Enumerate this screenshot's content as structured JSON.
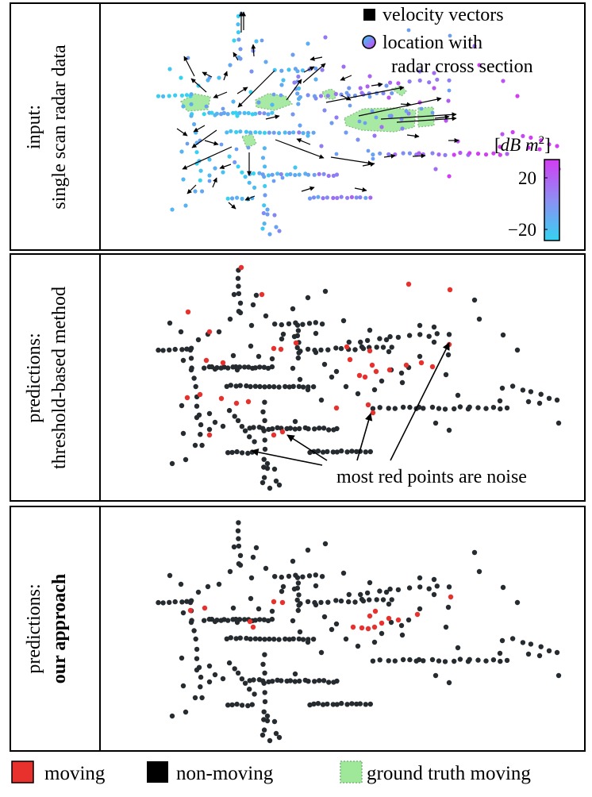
{
  "colors": {
    "moving": "#e8302c",
    "non_moving": "#262b30",
    "ground_truth_fill": "#9fe89a",
    "ground_truth_stroke": "#79b879",
    "velocity": "#000000",
    "rcs_low": "#34d3f2",
    "rcs_high": "#d23cf3"
  },
  "panels": [
    {
      "id": "input",
      "label_line1": "input:",
      "label_line2": "single scan radar data"
    },
    {
      "id": "threshold",
      "label_line1": "predictions:",
      "label_line2": "threshold-based method",
      "annotation": "most red points are noise"
    },
    {
      "id": "ours",
      "label_line1": "predictions:",
      "label_line2": "our approach"
    }
  ],
  "input_legend": {
    "velocity": "velocity vectors",
    "location_line1": "location with",
    "location_line2": "radar cross section"
  },
  "colorbar": {
    "unit_open": "[",
    "unit_main": "dB m",
    "unit_exp": "2",
    "unit_close": "]",
    "max_label": "20",
    "min_label": "−20"
  },
  "bottom_legend": {
    "moving": "moving",
    "non_moving": "non-moving",
    "ground_truth": "ground truth moving"
  }
}
